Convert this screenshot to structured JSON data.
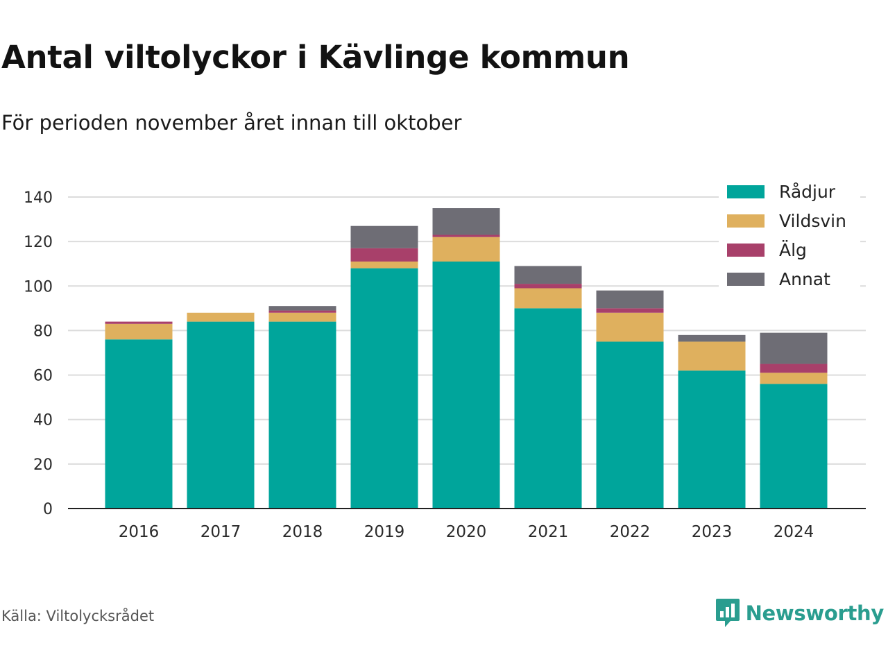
{
  "title": "Antal viltolyckor i Kävlinge kommun",
  "subtitle": "För perioden november året innan till oktober",
  "source": "Källa: Viltolycksrådet",
  "brand": {
    "name": "Newsworthy",
    "icon": "newsworthy-logo-icon",
    "color": "#2a9d8f"
  },
  "chart_data": {
    "type": "bar",
    "stacked": true,
    "categories": [
      "2016",
      "2017",
      "2018",
      "2019",
      "2020",
      "2021",
      "2022",
      "2023",
      "2024"
    ],
    "series": [
      {
        "name": "Rådjur",
        "color": "#00a59b",
        "values": [
          76,
          84,
          84,
          108,
          111,
          90,
          75,
          62,
          56
        ]
      },
      {
        "name": "Vildsvin",
        "color": "#dfb05e",
        "values": [
          7,
          4,
          4,
          3,
          11,
          9,
          13,
          13,
          5
        ]
      },
      {
        "name": "Älg",
        "color": "#a8406a",
        "values": [
          1,
          0,
          1,
          6,
          1,
          2,
          2,
          0,
          4
        ]
      },
      {
        "name": "Annat",
        "color": "#6e6d75",
        "values": [
          0,
          0,
          2,
          10,
          12,
          8,
          8,
          3,
          14
        ]
      }
    ],
    "yticks": [
      0,
      20,
      40,
      60,
      80,
      100,
      120,
      140
    ],
    "ylim": [
      0,
      140
    ],
    "grid": true,
    "legend_position": "top-right",
    "xlabel": "",
    "ylabel": ""
  }
}
